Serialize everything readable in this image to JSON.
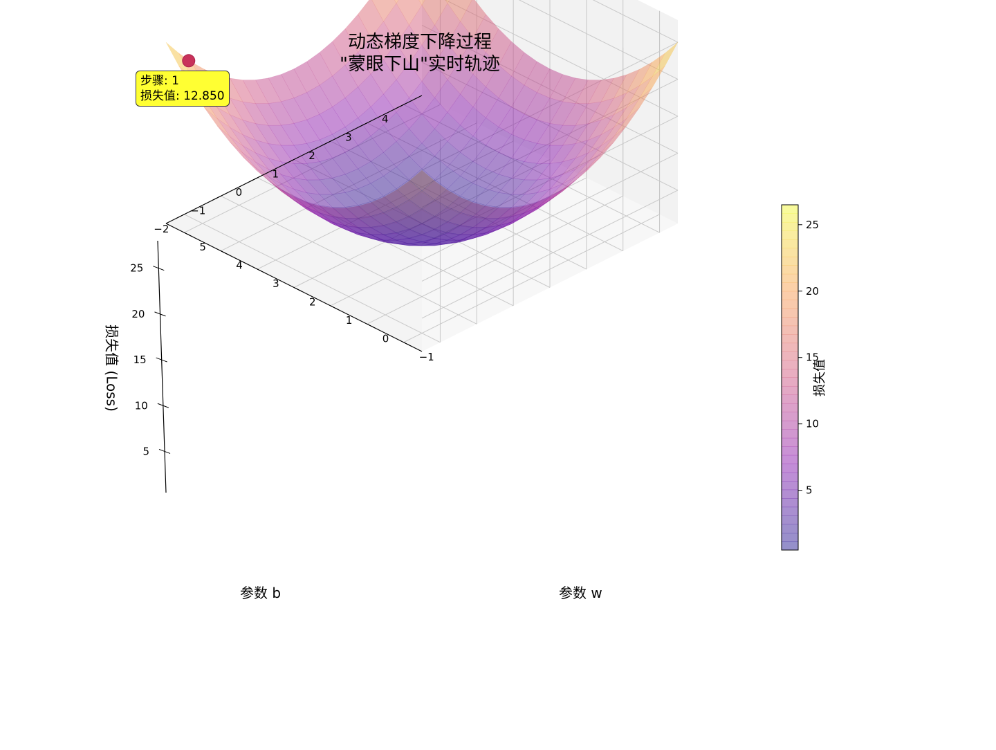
{
  "title_line1": "动态梯度下降过程",
  "title_line2": "\"蒙眼下山\"实时轨迹",
  "info": {
    "step_label": "步骤: 1",
    "loss_label": "损失值: 12.850"
  },
  "chart_data": {
    "type": "surface3d",
    "title": "动态梯度下降过程\n\"蒙眼下山\"实时轨迹",
    "xlabel": "参数 w",
    "ylabel": "参数 b",
    "zlabel": "损失值 (Loss)",
    "w_ticks": [
      "−1",
      "0",
      "1",
      "2",
      "3",
      "4",
      "5"
    ],
    "b_ticks": [
      "−2",
      "−1",
      "0",
      "1",
      "2",
      "3",
      "4"
    ],
    "z_ticks": [
      "5",
      "10",
      "15",
      "20",
      "25"
    ],
    "w_range": [
      -1.5,
      5.5
    ],
    "b_range": [
      -2.5,
      4.5
    ],
    "z_range": [
      0.5,
      28
    ],
    "surface": "loss = (w - 2)^2 + (b - 1)^2 + 0.5",
    "current_point": {
      "step": 1,
      "loss": 12.85
    },
    "colormap": "plasma",
    "colorbar": {
      "label": "损失值",
      "ticks": [
        "5",
        "10",
        "15",
        "20",
        "25"
      ],
      "range": [
        0.5,
        26.5
      ]
    },
    "point_color": "#c8325a",
    "grid": true
  }
}
